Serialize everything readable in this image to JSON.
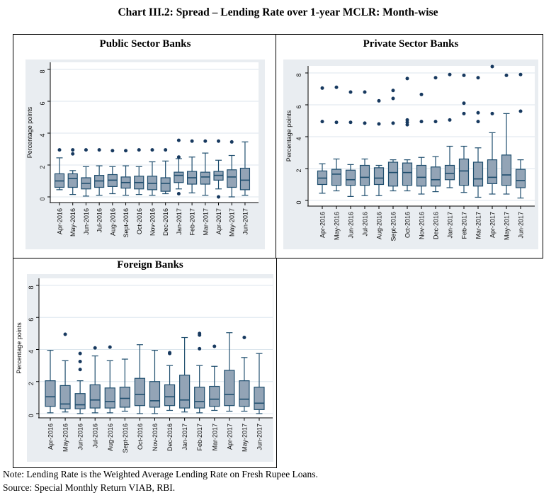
{
  "title": "Chart III.2: Spread – Lending Rate over 1-year MCLR: Month-wise",
  "note": "Note: Lending Rate is the Weighted Average Lending Rate on Fresh Rupee Loans.",
  "source": "Source: Special Monthly Return VIAB, RBI.",
  "colors": {
    "box_fill": "#93a4b6",
    "box_border": "#1f4e6e",
    "outlier_dot": "#17395f",
    "panel_bg": "#e9edf1",
    "gridline": "#dce6ed",
    "axis": "#000000",
    "frame": "#000000"
  },
  "chart_data": [
    {
      "type": "box",
      "title": "Public Sector Banks",
      "ylabel": "Percentage points",
      "ylim": [
        0,
        8.8
      ],
      "yticks": [
        0,
        2,
        4,
        6,
        8
      ],
      "grid": true,
      "categories": [
        "Apr-2016",
        "May-2016",
        "Jun-2016",
        "Jul-2016",
        "Aug-2016",
        "Sept-2016",
        "Oct-2016",
        "Nov-2016",
        "Dec-2016",
        "Jan-2017",
        "Feb-2017",
        "Mar-2017",
        "Apr-2017",
        "May-2017",
        "Jun-2017"
      ],
      "box_keys": [
        "whisker_low",
        "q1",
        "median",
        "q3",
        "whisker_high"
      ],
      "boxes": [
        [
          0.45,
          0.6,
          1.0,
          1.45,
          2.45
        ],
        [
          0.15,
          0.6,
          1.15,
          1.45,
          1.65
        ],
        [
          0.05,
          0.5,
          0.85,
          1.2,
          1.9
        ],
        [
          0.1,
          0.6,
          1.0,
          1.35,
          1.95
        ],
        [
          0.2,
          0.65,
          1.05,
          1.4,
          1.9
        ],
        [
          0.1,
          0.55,
          0.9,
          1.25,
          1.95
        ],
        [
          0.15,
          0.5,
          0.9,
          1.3,
          1.9
        ],
        [
          0.1,
          0.45,
          0.85,
          1.3,
          2.2
        ],
        [
          0.2,
          0.35,
          0.85,
          1.2,
          2.25
        ],
        [
          0.5,
          0.9,
          1.35,
          1.55,
          2.4
        ],
        [
          0.25,
          0.8,
          1.2,
          1.6,
          2.5
        ],
        [
          0.1,
          0.8,
          1.25,
          1.55,
          2.75
        ],
        [
          0.5,
          1.05,
          1.35,
          1.6,
          2.3
        ],
        [
          0.0,
          0.6,
          1.25,
          1.7,
          2.6
        ],
        [
          0.1,
          0.45,
          1.05,
          1.8,
          3.45
        ]
      ],
      "outliers": [
        [
          2.95
        ],
        [
          2.7,
          2.95
        ],
        [
          2.95
        ],
        [
          2.95
        ],
        [
          2.9
        ],
        [
          2.9
        ],
        [
          2.95
        ],
        [
          2.95
        ],
        [
          2.95
        ],
        [
          0.2,
          2.5,
          3.55
        ],
        [
          3.5
        ],
        [
          3.5
        ],
        [
          0.0,
          3.5
        ],
        [
          3.45
        ],
        []
      ]
    },
    {
      "type": "box",
      "title": "Private Sector Banks",
      "ylabel": "Percentage points",
      "ylim": [
        0,
        8.8
      ],
      "yticks": [
        0,
        2,
        4,
        6,
        8
      ],
      "grid": true,
      "categories": [
        "Apr-2016",
        "May-2016",
        "Jun-2016",
        "Jul-2016",
        "Aug-2016",
        "Sept-2016",
        "Oct-2016",
        "Nov-2016",
        "Dec-2016",
        "Jan-2017",
        "Feb-2017",
        "Mar-2017",
        "Apr-2017",
        "May-2017",
        "Jun-2017"
      ],
      "box_keys": [
        "whisker_low",
        "q1",
        "median",
        "q3",
        "whisker_high"
      ],
      "boxes": [
        [
          0.45,
          1.0,
          1.4,
          1.85,
          2.3
        ],
        [
          0.6,
          0.95,
          1.65,
          1.95,
          2.6
        ],
        [
          0.25,
          0.95,
          1.3,
          1.9,
          2.25
        ],
        [
          0.3,
          0.95,
          1.45,
          2.2,
          2.6
        ],
        [
          0.3,
          1.0,
          1.4,
          2.05,
          2.2
        ],
        [
          0.6,
          0.9,
          1.75,
          2.4,
          2.55
        ],
        [
          0.6,
          0.95,
          1.75,
          2.35,
          2.55
        ],
        [
          0.4,
          0.9,
          1.45,
          2.2,
          2.7
        ],
        [
          0.55,
          0.9,
          1.3,
          2.1,
          2.75
        ],
        [
          0.8,
          1.3,
          1.7,
          2.2,
          3.4
        ],
        [
          0.5,
          0.95,
          1.85,
          2.6,
          3.4
        ],
        [
          0.2,
          0.9,
          1.35,
          2.4,
          3.3
        ],
        [
          0.4,
          1.05,
          1.45,
          2.55,
          4.25
        ],
        [
          0.4,
          0.95,
          1.6,
          2.85,
          5.45
        ],
        [
          0.15,
          0.8,
          1.25,
          1.95,
          2.55
        ]
      ],
      "outliers": [
        [
          4.95,
          7.05
        ],
        [
          4.9,
          7.1
        ],
        [
          4.9,
          6.8
        ],
        [
          4.85,
          6.8
        ],
        [
          4.8,
          6.25
        ],
        [
          4.85,
          6.4,
          6.9
        ],
        [
          4.75,
          4.9,
          5.05,
          7.65
        ],
        [
          4.95,
          6.65
        ],
        [
          4.95,
          7.7
        ],
        [
          5.05,
          7.9
        ],
        [
          5.45,
          6.1,
          7.85
        ],
        [
          4.95,
          5.5,
          7.7
        ],
        [
          5.45,
          8.4
        ],
        [
          7.85
        ],
        [
          5.6,
          7.9
        ]
      ]
    },
    {
      "type": "box",
      "title": "Foreign Banks",
      "ylabel": "Percentage points",
      "ylim": [
        0,
        8.8
      ],
      "yticks": [
        0,
        2,
        4,
        6,
        8
      ],
      "grid": true,
      "categories": [
        "Apr-2016",
        "May-2016",
        "Jun-2016",
        "Jul-2016",
        "Aug-2016",
        "Sept-2016",
        "Oct-2016",
        "Nov-2016",
        "Dec-2016",
        "Jan-2017",
        "Feb-2017",
        "Mar-2017",
        "Apr-2017",
        "May-2017",
        "Jun-2017"
      ],
      "box_keys": [
        "whisker_low",
        "q1",
        "median",
        "q3",
        "whisker_high"
      ],
      "boxes": [
        [
          0.05,
          0.45,
          1.05,
          2.05,
          3.95
        ],
        [
          0.1,
          0.3,
          0.6,
          1.75,
          3.3
        ],
        [
          0.0,
          0.3,
          0.55,
          1.25,
          2.05
        ],
        [
          0.05,
          0.35,
          0.85,
          1.8,
          3.6
        ],
        [
          0.05,
          0.35,
          0.75,
          1.6,
          3.3
        ],
        [
          0.15,
          0.4,
          0.95,
          1.65,
          3.4
        ],
        [
          0.0,
          0.5,
          1.2,
          2.2,
          4.3
        ],
        [
          0.0,
          0.4,
          0.8,
          2.0,
          3.95
        ],
        [
          0.2,
          0.5,
          1.05,
          1.8,
          3.0
        ],
        [
          0.1,
          0.35,
          0.85,
          2.4,
          4.75
        ],
        [
          0.05,
          0.35,
          0.75,
          1.65,
          3.0
        ],
        [
          0.2,
          0.45,
          0.9,
          1.7,
          2.95
        ],
        [
          0.15,
          0.5,
          1.2,
          2.7,
          5.05
        ],
        [
          0.15,
          0.45,
          0.9,
          2.05,
          3.5
        ],
        [
          0.0,
          0.25,
          0.65,
          1.65,
          3.75
        ]
      ],
      "outliers": [
        [],
        [
          4.95
        ],
        [
          2.75,
          3.25,
          3.75
        ],
        [
          4.1
        ],
        [
          4.15
        ],
        [],
        [],
        [],
        [
          3.75,
          3.8
        ],
        [],
        [
          4.05,
          4.9,
          5.0
        ],
        [
          4.2
        ],
        [],
        [
          4.75
        ],
        []
      ]
    }
  ]
}
